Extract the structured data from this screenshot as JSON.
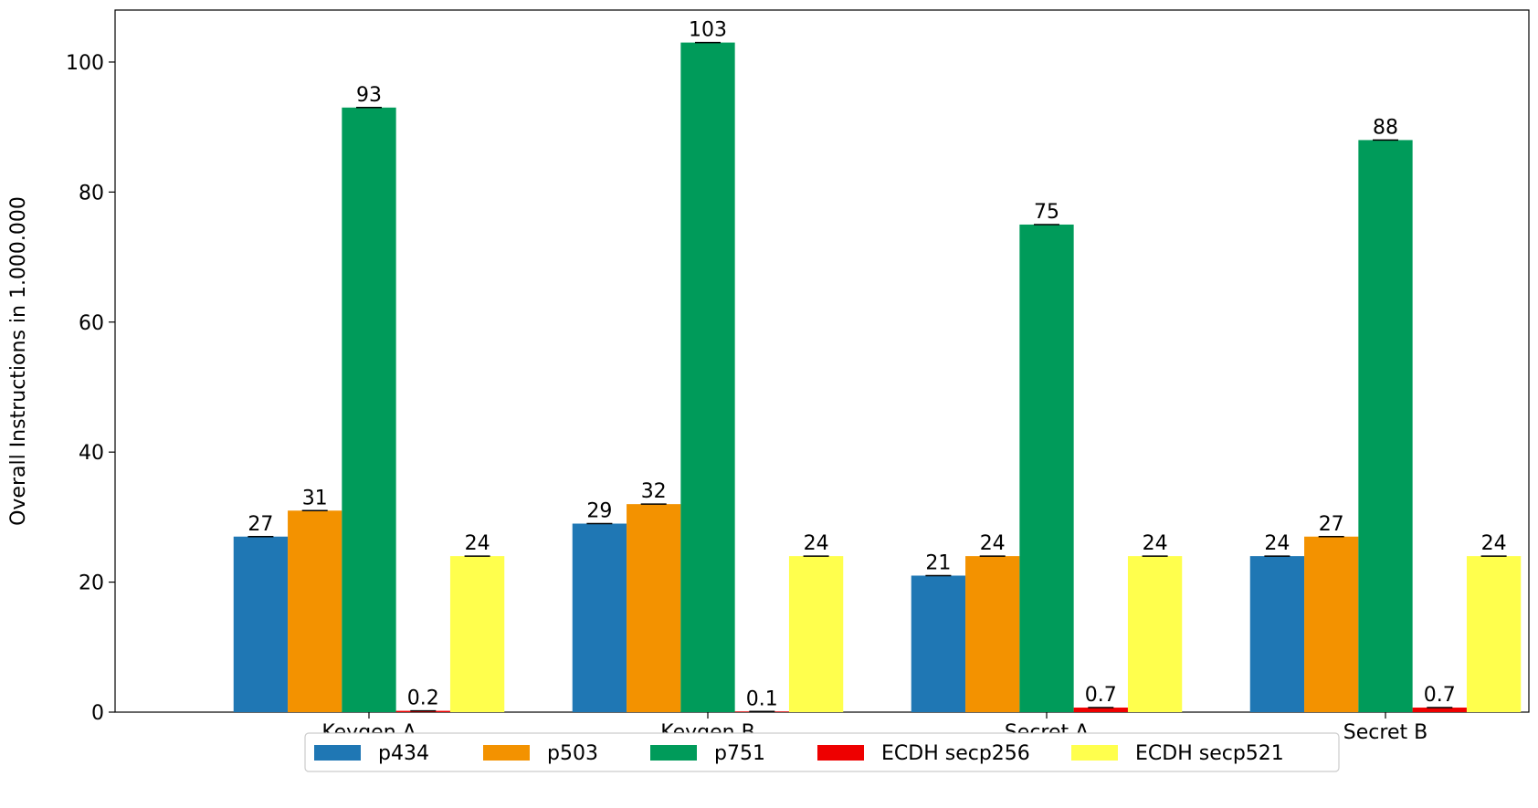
{
  "chart_data": {
    "type": "bar",
    "title": "",
    "xlabel": "",
    "ylabel": "Overall Instructions in 1.000.000",
    "ylim": [
      0,
      108
    ],
    "yticks": [
      0,
      20,
      40,
      60,
      80,
      100
    ],
    "categories": [
      "Keygen A",
      "Keygen B",
      "Secret A",
      "Secret B"
    ],
    "series": [
      {
        "name": "p434",
        "color": "#1f77b4",
        "values": [
          27,
          29,
          21,
          24
        ],
        "labels": [
          "27",
          "29",
          "21",
          "24"
        ]
      },
      {
        "name": "p503",
        "color": "#f39200",
        "values": [
          31,
          32,
          24,
          27
        ],
        "labels": [
          "31",
          "32",
          "24",
          "27"
        ]
      },
      {
        "name": "p751",
        "color": "#009b5a",
        "values": [
          93,
          103,
          75,
          88
        ],
        "labels": [
          "93",
          "103",
          "75",
          "88"
        ]
      },
      {
        "name": "ECDH secp256",
        "color": "#ee0000",
        "values": [
          0.2,
          0.1,
          0.7,
          0.7
        ],
        "labels": [
          "0.2",
          "0.1",
          "0.7",
          "0.7"
        ]
      },
      {
        "name": "ECDH secp521",
        "color": "#ffff4d",
        "values": [
          24,
          24,
          24,
          24
        ],
        "labels": [
          "24",
          "24",
          "24",
          "24"
        ]
      }
    ],
    "grid": false,
    "legend": "bottom-center",
    "error_bars": true
  }
}
